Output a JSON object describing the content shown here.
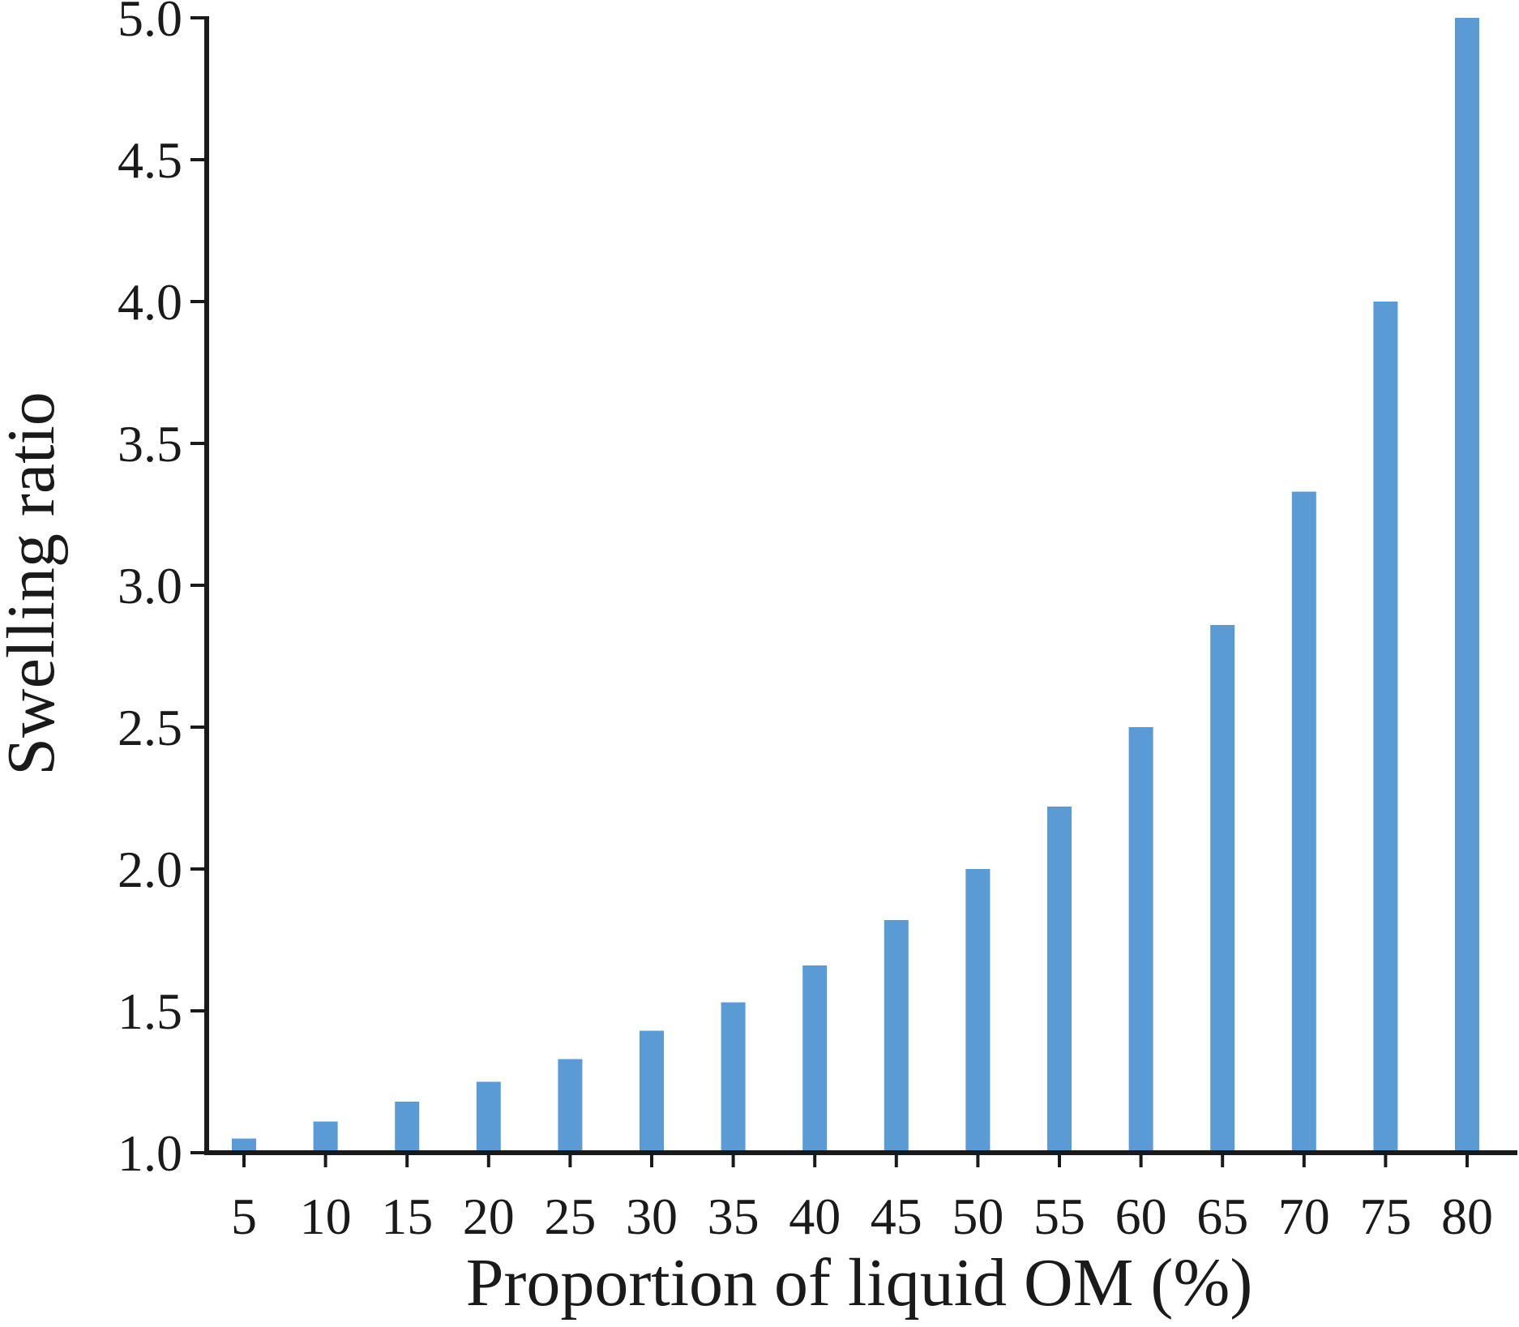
{
  "chart_data": {
    "type": "bar",
    "title": "",
    "xlabel": "Proportion of liquid OM (%)",
    "ylabel": "Swelling ratio",
    "categories": [
      "5",
      "10",
      "15",
      "20",
      "25",
      "30",
      "35",
      "40",
      "45",
      "50",
      "55",
      "60",
      "65",
      "70",
      "75",
      "80"
    ],
    "values": [
      1.05,
      1.11,
      1.18,
      1.25,
      1.33,
      1.43,
      1.53,
      1.66,
      1.82,
      2.0,
      2.22,
      2.5,
      2.86,
      3.33,
      4.0,
      5.0
    ],
    "ylim": [
      1.0,
      5.0
    ],
    "yticks": [
      "1.0",
      "1.5",
      "2.0",
      "2.5",
      "3.0",
      "3.5",
      "4.0",
      "4.5",
      "5.0"
    ],
    "grid": false,
    "legend": "none",
    "colors": {
      "bar": "#5b9bd5",
      "axis": "#1a1a1a"
    }
  }
}
